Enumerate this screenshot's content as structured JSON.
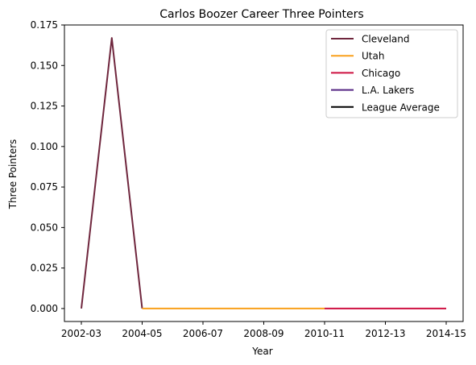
{
  "chart_data": {
    "type": "line",
    "title": "Carlos Boozer Career Three Pointers",
    "xlabel": "Year",
    "ylabel": "Three Pointers",
    "x_tick_labels": [
      "2002-03",
      "2004-05",
      "2006-07",
      "2008-09",
      "2010-11",
      "2012-13",
      "2014-15"
    ],
    "y_tick_labels": [
      "0.000",
      "0.025",
      "0.050",
      "0.075",
      "0.100",
      "0.125",
      "0.150",
      "0.175"
    ],
    "ylim": [
      -0.008,
      0.175
    ],
    "grid": false,
    "legend_position": "top-right",
    "series": [
      {
        "name": "Cleveland",
        "color": "#6f263d",
        "x": [
          "2002-03",
          "2003-04",
          "2004-05"
        ],
        "values": [
          0.0,
          0.167,
          0.0
        ]
      },
      {
        "name": "Utah",
        "color": "#f9a01b",
        "x": [
          "2004-05",
          "2005-06",
          "2006-07",
          "2007-08",
          "2008-09",
          "2009-10",
          "2010-11"
        ],
        "values": [
          0.0,
          0.0,
          0.0,
          0.0,
          0.0,
          0.0,
          0.0
        ]
      },
      {
        "name": "Chicago",
        "color": "#ce1141",
        "x": [
          "2010-11",
          "2011-12",
          "2012-13",
          "2013-14",
          "2014-15"
        ],
        "values": [
          0.0,
          0.0,
          0.0,
          0.0,
          0.0
        ]
      },
      {
        "name": "L.A. Lakers",
        "color": "#552583",
        "x": [
          "2014-15"
        ],
        "values": [
          0.0
        ]
      },
      {
        "name": "League Average",
        "color": "#000000",
        "x": [],
        "values": []
      }
    ]
  }
}
